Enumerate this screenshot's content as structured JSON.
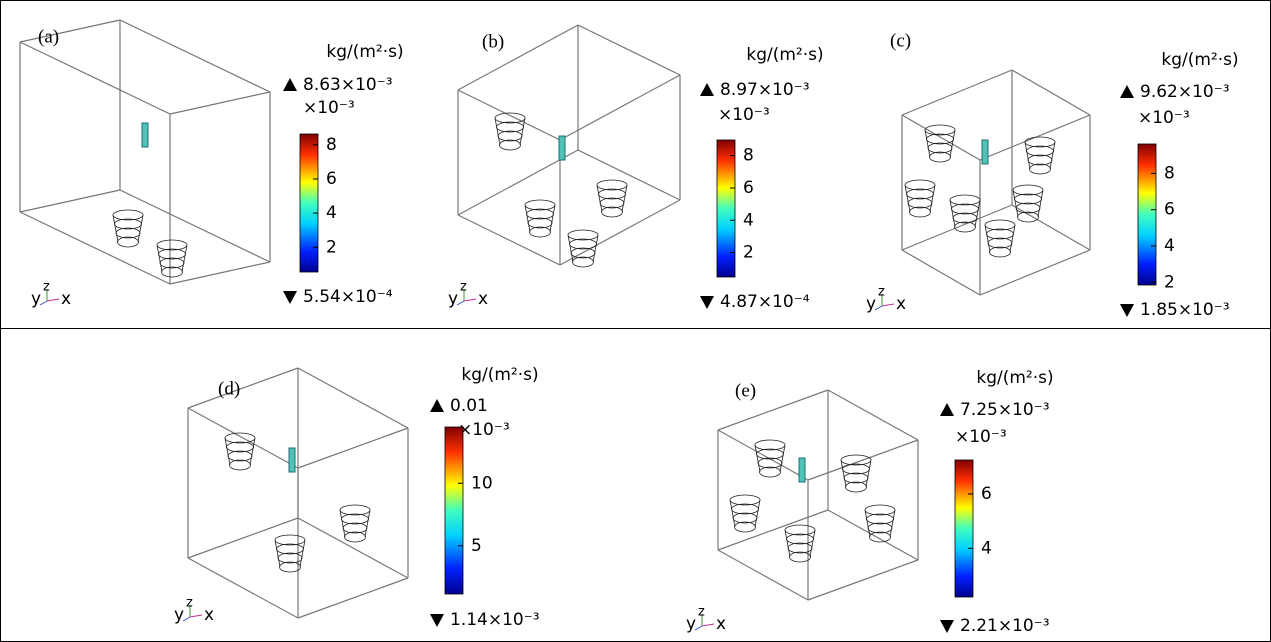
{
  "panels": [
    {
      "label": "(a)",
      "unit": "kg/(m²·s)",
      "max": {
        "value": 8.63,
        "label": "8.63×10⁻³"
      },
      "scale": "×10⁻³",
      "ticks": [
        2,
        4,
        6,
        8
      ],
      "min": {
        "value": 0.554,
        "label": "5.54×10⁻⁴"
      },
      "triad": [
        "y",
        "z",
        "x"
      ]
    },
    {
      "label": "(b)",
      "unit": "kg/(m²·s)",
      "max": {
        "value": 8.97,
        "label": "8.97×10⁻³"
      },
      "scale": "×10⁻³",
      "ticks": [
        2,
        4,
        6,
        8
      ],
      "min": {
        "value": 0.487,
        "label": "4.87×10⁻⁴"
      },
      "triad": [
        "y",
        "z",
        "x"
      ]
    },
    {
      "label": "(c)",
      "unit": "kg/(m²·s)",
      "max": {
        "value": 9.62,
        "label": "9.62×10⁻³"
      },
      "scale": "×10⁻³",
      "ticks": [
        2,
        4,
        6,
        8
      ],
      "min": {
        "value": 1.85,
        "label": "1.85×10⁻³"
      },
      "triad": [
        "y",
        "z",
        "x"
      ]
    },
    {
      "label": "(d)",
      "unit": "kg/(m²·s)",
      "max": {
        "value": 14.5,
        "label": "0.01"
      },
      "scale": "×10⁻³",
      "ticks": [
        5,
        10
      ],
      "min": {
        "value": 1.14,
        "label": "1.14×10⁻³"
      },
      "triad": [
        "y",
        "z",
        "x"
      ]
    },
    {
      "label": "(e)",
      "unit": "kg/(m²·s)",
      "max": {
        "value": 7.25,
        "label": "7.25×10⁻³"
      },
      "scale": "×10⁻³",
      "ticks": [
        4,
        6
      ],
      "min": {
        "value": 2.21,
        "label": "2.21×10⁻³"
      },
      "triad": [
        "y",
        "z",
        "x"
      ]
    }
  ]
}
